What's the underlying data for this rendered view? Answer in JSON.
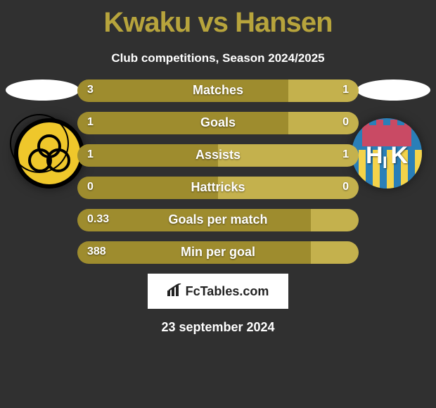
{
  "title": "Kwaku vs Hansen",
  "subtitle": "Club competitions, Season 2024/2025",
  "date": "23 september 2024",
  "brand": "FcTables.com",
  "colors": {
    "accent_dark": "#9e8c2e",
    "accent_light": "#c4b14d",
    "title_color": "#b7a43c",
    "background": "#303030"
  },
  "stats": [
    {
      "label": "Matches",
      "left_val": "3",
      "right_val": "1",
      "left_pct": 75,
      "right_pct": 25,
      "left_col": "#9e8c2e",
      "right_col": "#c4b14d"
    },
    {
      "label": "Goals",
      "left_val": "1",
      "right_val": "0",
      "left_pct": 75,
      "right_pct": 25,
      "left_col": "#9e8c2e",
      "right_col": "#c4b14d"
    },
    {
      "label": "Assists",
      "left_val": "1",
      "right_val": "1",
      "left_pct": 50,
      "right_pct": 50,
      "left_col": "#9e8c2e",
      "right_col": "#c4b14d"
    },
    {
      "label": "Hattricks",
      "left_val": "0",
      "right_val": "0",
      "left_pct": 50,
      "right_pct": 50,
      "left_col": "#9e8c2e",
      "right_col": "#c4b14d"
    },
    {
      "label": "Goals per match",
      "left_val": "0.33",
      "right_val": "",
      "left_pct": 83,
      "right_pct": 17,
      "left_col": "#9e8c2e",
      "right_col": "#c4b14d"
    },
    {
      "label": "Min per goal",
      "left_val": "388",
      "right_val": "",
      "left_pct": 83,
      "right_pct": 17,
      "left_col": "#9e8c2e",
      "right_col": "#c4b14d"
    }
  ],
  "teams": {
    "left": {
      "name": "AC Horsens"
    },
    "right": {
      "name": "Hobro IK"
    }
  }
}
